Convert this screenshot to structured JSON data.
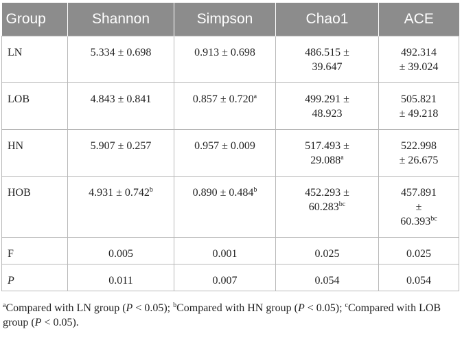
{
  "table": {
    "headers": [
      "Group",
      "Shannon",
      "Simpson",
      "Chao1",
      "ACE"
    ],
    "rows": [
      {
        "group": "LN",
        "shannon": {
          "text": "5.334 ± 0.698",
          "sup": ""
        },
        "simpson": {
          "text": "0.913 ± 0.698",
          "sup": ""
        },
        "chao1": {
          "line1": "486.515 ±",
          "line2": "39.647",
          "sup": ""
        },
        "ace": {
          "line1": "492.314",
          "line2": "± 39.024",
          "line3": "",
          "sup": ""
        }
      },
      {
        "group": "LOB",
        "shannon": {
          "text": "4.843 ± 0.841",
          "sup": ""
        },
        "simpson": {
          "text": "0.857 ± 0.720",
          "sup": "a"
        },
        "chao1": {
          "line1": "499.291 ±",
          "line2": "48.923",
          "sup": ""
        },
        "ace": {
          "line1": "505.821",
          "line2": "± 49.218",
          "line3": "",
          "sup": ""
        }
      },
      {
        "group": "HN",
        "shannon": {
          "text": "5.907 ± 0.257",
          "sup": ""
        },
        "simpson": {
          "text": "0.957 ± 0.009",
          "sup": ""
        },
        "chao1": {
          "line1": "517.493 ±",
          "line2": "29.088",
          "sup": "a"
        },
        "ace": {
          "line1": "522.998",
          "line2": "± 26.675",
          "line3": "",
          "sup": ""
        }
      },
      {
        "group": "HOB",
        "shannon": {
          "text": "4.931 ± 0.742",
          "sup": "b"
        },
        "simpson": {
          "text": "0.890 ± 0.484",
          "sup": "b"
        },
        "chao1": {
          "line1": "452.293 ±",
          "line2": "60.283",
          "sup": "bc"
        },
        "ace": {
          "line1": "457.891",
          "line2": "±",
          "line3": "60.393",
          "sup": "bc"
        }
      },
      {
        "group": "F",
        "shannon": {
          "text": "0.005"
        },
        "simpson": {
          "text": "0.001"
        },
        "chao1": {
          "text": "0.025"
        },
        "ace": {
          "text": "0.025"
        }
      },
      {
        "group": "P",
        "shannon": {
          "text": "0.011"
        },
        "simpson": {
          "text": "0.007"
        },
        "chao1": {
          "text": "0.054"
        },
        "ace": {
          "text": "0.054"
        }
      }
    ]
  },
  "footnote": {
    "a_mark": "a",
    "a_text": "Compared with LN group (",
    "p": "P",
    "lt": " < 0.05); ",
    "b_mark": "b",
    "b_text": "Compared with HN group (",
    "c_mark": "c",
    "c_text": "Compared with LOB group (",
    "end": " < 0.05)."
  }
}
